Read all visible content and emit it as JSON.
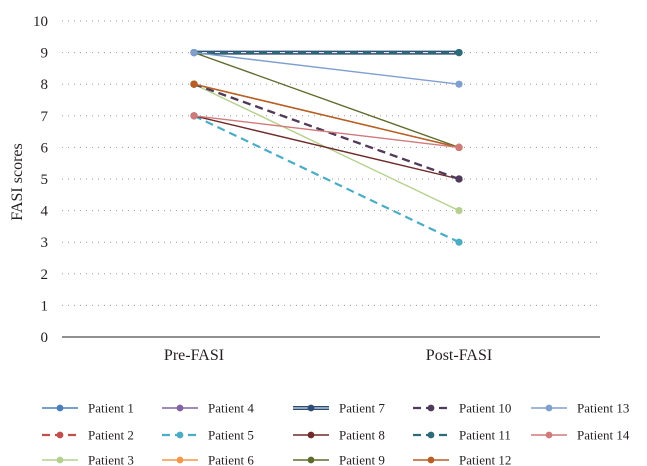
{
  "chart_data": {
    "type": "line",
    "title": "",
    "xlabel": "",
    "ylabel": "FASI scores",
    "categories": [
      "Pre-FASI",
      "Post-FASI"
    ],
    "ylim": [
      0,
      10
    ],
    "yticks": [
      0,
      1,
      2,
      3,
      4,
      5,
      6,
      7,
      8,
      9,
      10
    ],
    "grid": "horizontal dotted",
    "legend_position": "bottom",
    "series": [
      {
        "name": "Patient 1",
        "values": [
          9,
          9
        ],
        "color": "#4a7ebb",
        "dash": "solid"
      },
      {
        "name": "Patient 2",
        "values": [
          8,
          5
        ],
        "color": "#c0504d",
        "dash": "dashed"
      },
      {
        "name": "Patient 3",
        "values": [
          8,
          4
        ],
        "color": "#b5d08e",
        "dash": "solid"
      },
      {
        "name": "Patient 4",
        "values": [
          8,
          6
        ],
        "color": "#8064a2",
        "dash": "solid"
      },
      {
        "name": "Patient 5",
        "values": [
          7,
          3
        ],
        "color": "#4bacc6",
        "dash": "dashed"
      },
      {
        "name": "Patient 6",
        "values": [
          8,
          6
        ],
        "color": "#f79646",
        "dash": "solid"
      },
      {
        "name": "Patient 7",
        "values": [
          9,
          9
        ],
        "color": "#2c4d75",
        "dash": "double"
      },
      {
        "name": "Patient 8",
        "values": [
          7,
          5
        ],
        "color": "#6f2a2a",
        "dash": "solid"
      },
      {
        "name": "Patient 9",
        "values": [
          9,
          6
        ],
        "color": "#5f6b2e",
        "dash": "solid"
      },
      {
        "name": "Patient 10",
        "values": [
          8,
          5
        ],
        "color": "#4d3a5c",
        "dash": "dashed"
      },
      {
        "name": "Patient 11",
        "values": [
          9,
          9
        ],
        "color": "#2e6b78",
        "dash": "dashed"
      },
      {
        "name": "Patient 12",
        "values": [
          8,
          6
        ],
        "color": "#b85f23",
        "dash": "solid"
      },
      {
        "name": "Patient 13",
        "values": [
          9,
          8
        ],
        "color": "#7f9fcf",
        "dash": "solid"
      },
      {
        "name": "Patient 14",
        "values": [
          7,
          6
        ],
        "color": "#d07a7a",
        "dash": "solid"
      }
    ]
  }
}
